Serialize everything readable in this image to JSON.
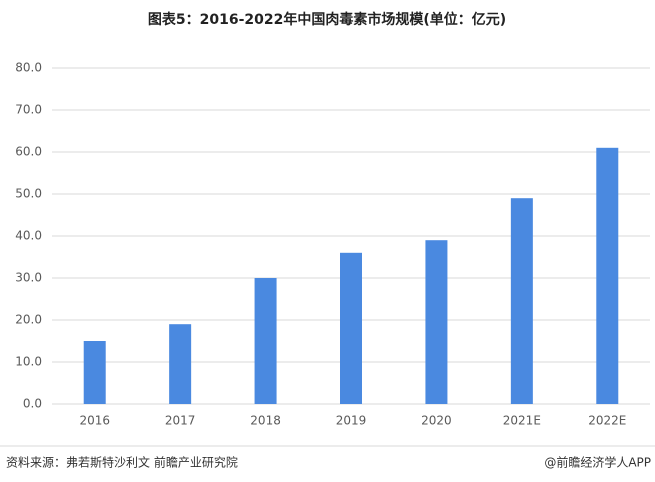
{
  "chart_data": {
    "type": "bar",
    "title": "图表5：2016-2022年中国肉毒素市场规模(单位：亿元)",
    "categories": [
      "2016",
      "2017",
      "2018",
      "2019",
      "2020",
      "2021E",
      "2022E"
    ],
    "values": [
      15,
      19,
      30,
      36,
      39,
      49,
      61
    ],
    "color": "#4a89e0",
    "ylim": [
      0,
      80
    ],
    "yticks": [
      {
        "value": 0,
        "label": "0.0"
      },
      {
        "value": 10,
        "label": "10.0"
      },
      {
        "value": 20,
        "label": "20.0"
      },
      {
        "value": 30,
        "label": "30.0"
      },
      {
        "value": 40,
        "label": "40.0"
      },
      {
        "value": 50,
        "label": "50.0"
      },
      {
        "value": 60,
        "label": "60.0"
      },
      {
        "value": 70,
        "label": "70.0"
      },
      {
        "value": 80,
        "label": "80.0"
      }
    ],
    "grid": true,
    "source": "资料来源：弗若斯特沙利文 前瞻产业研究院",
    "credit": "@前瞻经济学人APP"
  }
}
